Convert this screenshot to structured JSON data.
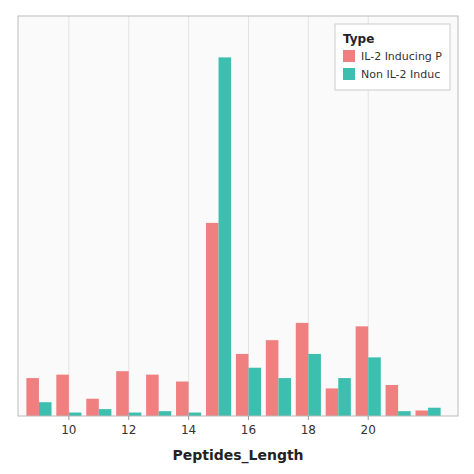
{
  "chart_data": {
    "type": "bar",
    "xlabel": "Peptides_Length",
    "legend_title": "Type",
    "x": [
      9,
      10,
      11,
      12,
      13,
      14,
      15,
      16,
      17,
      18,
      19,
      20,
      21,
      22
    ],
    "series": [
      {
        "name": "IL-2 Inducing P",
        "color": "#F08080",
        "values": [
          55,
          60,
          25,
          65,
          60,
          50,
          280,
          90,
          110,
          135,
          40,
          130,
          45,
          8
        ]
      },
      {
        "name": "Non IL-2 Induc",
        "color": "#3DBFB0",
        "values": [
          20,
          5,
          10,
          5,
          7,
          5,
          520,
          70,
          55,
          90,
          55,
          85,
          7,
          12
        ]
      }
    ],
    "xlim": [
      8.3,
      23.0
    ],
    "xticks": [
      10,
      12,
      14,
      16,
      18,
      20
    ],
    "ylim": [
      0,
      580
    ],
    "grid": true,
    "legend": "upper right",
    "tick_labels": "x"
  }
}
